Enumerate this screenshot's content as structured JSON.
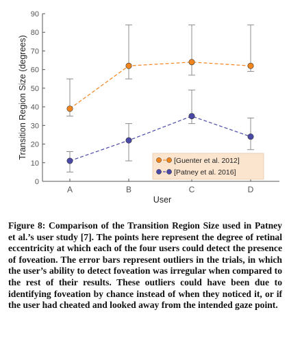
{
  "chart_data": {
    "type": "line",
    "categories": [
      "A",
      "B",
      "C",
      "D"
    ],
    "xlabel": "User",
    "ylabel": "Transition Region Size (degrees)",
    "ylim": [
      0,
      90
    ],
    "yticks": [
      0,
      10,
      20,
      30,
      40,
      50,
      60,
      70,
      80,
      90
    ],
    "grid": false,
    "legend_position": "bottom-right",
    "series": [
      {
        "name": "[Guenter et al. 2012]",
        "color": "#f0851e",
        "values": [
          39,
          62,
          64,
          62
        ],
        "error_low": [
          35,
          55,
          57,
          59
        ],
        "error_high": [
          55,
          84,
          84,
          84
        ]
      },
      {
        "name": "[Patney et al. 2016]",
        "color": "#4a49a8",
        "values": [
          11,
          22,
          35,
          24
        ],
        "error_low": [
          5,
          11,
          31,
          17
        ],
        "error_high": [
          16,
          31,
          49,
          34
        ]
      }
    ],
    "legend_bg": "#fbe5cf",
    "error_bar_color": "#8c8c8c"
  },
  "caption": {
    "label": "Figure 8:",
    "text": "Comparison of the Transition Region Size used in Patney et al.’s user study [7]. The points here represent the degree of retinal eccentricity at which each of the four users could detect the presence of foveation. The error bars represent outliers in the trials, in which the user’s ability to detect foveation was irregular when compared to the rest of their results. These outliers could have been due to identifying foveation by chance instead of when they noticed it, or if the user had cheated and looked away from the intended gaze point."
  }
}
